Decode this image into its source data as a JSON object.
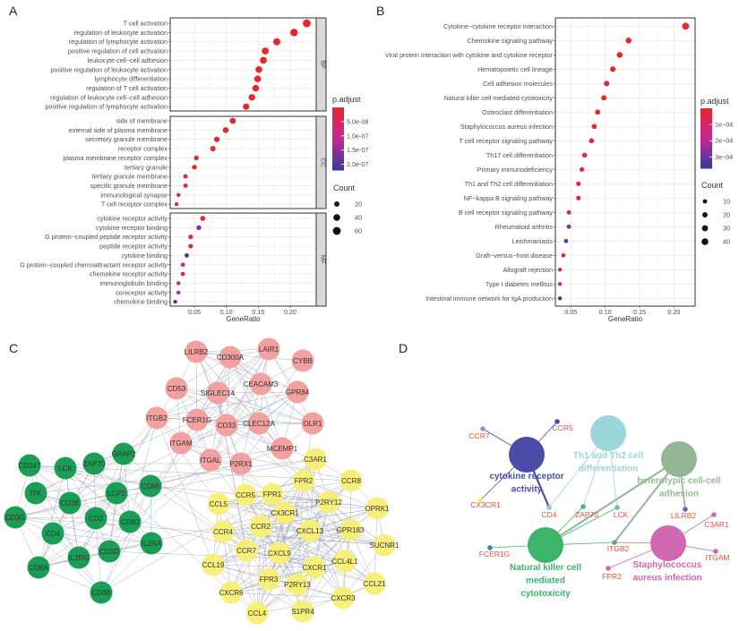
{
  "panels": {
    "a": "A",
    "b": "B",
    "c": "C",
    "d": "D"
  },
  "chart_data": [
    {
      "panel": "A",
      "type": "scatter",
      "xlabel": "GeneRatio",
      "xlim": [
        0.01,
        0.24
      ],
      "xticks": [
        "0.05",
        "0.10",
        "0.15",
        "0.20"
      ],
      "grid": true,
      "legend_position": "right",
      "color_legend": {
        "title": "p.adjust",
        "ticks": [
          "5.0e-08",
          "1.0e-07",
          "1.5e-07",
          "2.0e-07"
        ],
        "range": [
          0,
          2.2e-07
        ],
        "low_color": "#e8262f",
        "high_color": "#3a3a9a"
      },
      "size_legend": {
        "title": "Count",
        "values": [
          20,
          40,
          60
        ]
      },
      "facets": [
        {
          "name": "BP",
          "terms": [
            {
              "term": "T cell activation",
              "ratio": 0.226,
              "count": 61,
              "p": 1e-09
            },
            {
              "term": "regulation of leukocyte activation",
              "ratio": 0.206,
              "count": 56,
              "p": 1e-09
            },
            {
              "term": "regulation of lymphocyte activation",
              "ratio": 0.179,
              "count": 48,
              "p": 1e-09
            },
            {
              "term": "positive regulation of cell activation",
              "ratio": 0.161,
              "count": 44,
              "p": 1e-09
            },
            {
              "term": "leukocyte cell−cell adhesion",
              "ratio": 0.158,
              "count": 43,
              "p": 1e-09
            },
            {
              "term": "positive regulation of leukocyte activation",
              "ratio": 0.151,
              "count": 41,
              "p": 1e-09
            },
            {
              "term": "lymphocyte differentiation",
              "ratio": 0.149,
              "count": 40,
              "p": 1e-09
            },
            {
              "term": "regulation of T cell activation",
              "ratio": 0.146,
              "count": 39,
              "p": 1e-09
            },
            {
              "term": "regulation of leukocyte cell−cell adhesion",
              "ratio": 0.14,
              "count": 38,
              "p": 1e-09
            },
            {
              "term": "positive regulation of lymphocyte activation",
              "ratio": 0.131,
              "count": 35,
              "p": 1e-09
            }
          ]
        },
        {
          "name": "CC",
          "terms": [
            {
              "term": "side of membrane",
              "ratio": 0.11,
              "count": 30,
              "p": 1e-09
            },
            {
              "term": "external side of plasma membrane",
              "ratio": 0.099,
              "count": 27,
              "p": 1e-09
            },
            {
              "term": "secretory granule membrane",
              "ratio": 0.085,
              "count": 23,
              "p": 1e-09
            },
            {
              "term": "receptor complex",
              "ratio": 0.079,
              "count": 21,
              "p": 1e-09
            },
            {
              "term": "plasma membrane receptor complex",
              "ratio": 0.053,
              "count": 14,
              "p": 2e-09
            },
            {
              "term": "tertiary granule",
              "ratio": 0.05,
              "count": 14,
              "p": 2e-09
            },
            {
              "term": "tertiary granule membrane",
              "ratio": 0.036,
              "count": 10,
              "p": 3e-09
            },
            {
              "term": "specific granule membrane",
              "ratio": 0.036,
              "count": 10,
              "p": 3e-09
            },
            {
              "term": "immunological synapse",
              "ratio": 0.025,
              "count": 7,
              "p": 5e-09
            },
            {
              "term": "T cell receptor complex",
              "ratio": 0.022,
              "count": 6,
              "p": 1e-08
            }
          ]
        },
        {
          "name": "MF",
          "terms": [
            {
              "term": "cytokine receptor activity",
              "ratio": 0.063,
              "count": 17,
              "p": 1e-08
            },
            {
              "term": "cytokine receptor binding",
              "ratio": 0.057,
              "count": 15,
              "p": 1.5e-07
            },
            {
              "term": "G protein−coupled peptide receptor activity",
              "ratio": 0.044,
              "count": 12,
              "p": 2e-08
            },
            {
              "term": "peptide receptor activity",
              "ratio": 0.044,
              "count": 12,
              "p": 2e-08
            },
            {
              "term": "cytokine binding",
              "ratio": 0.038,
              "count": 10,
              "p": 2.1e-07
            },
            {
              "term": "G protein−coupled chemoattractant receptor activity",
              "ratio": 0.032,
              "count": 9,
              "p": 2e-08
            },
            {
              "term": "chemokine receptor activity",
              "ratio": 0.032,
              "count": 9,
              "p": 2e-08
            },
            {
              "term": "immunoglobulin binding",
              "ratio": 0.025,
              "count": 7,
              "p": 3e-08
            },
            {
              "term": "coreceptor activity",
              "ratio": 0.025,
              "count": 7,
              "p": 1.3e-07
            },
            {
              "term": "chemokine binding",
              "ratio": 0.02,
              "count": 6,
              "p": 2.1e-07
            }
          ]
        }
      ]
    },
    {
      "panel": "B",
      "type": "scatter",
      "xlabel": "GeneRatio",
      "xlim": [
        0.03,
        0.23
      ],
      "xticks": [
        "0.05",
        "0.10",
        "0.15",
        "0.20"
      ],
      "grid": true,
      "legend_position": "right",
      "color_legend": {
        "title": "p.adjust",
        "ticks": [
          "1e−04",
          "2e−04",
          "3e−04"
        ],
        "range": [
          0,
          0.00037
        ],
        "low_color": "#e8262f",
        "high_color": "#3a3a9a"
      },
      "size_legend": {
        "title": "Count",
        "values": [
          10,
          20,
          30,
          40
        ]
      },
      "terms": [
        {
          "term": "Cytokine−cytokine receptor interaction",
          "ratio": 0.217,
          "count": 44,
          "p": 1e-10
        },
        {
          "term": "Chemokine signaling pathway",
          "ratio": 0.134,
          "count": 27,
          "p": 1e-08
        },
        {
          "term": "Viral protein interaction with cytokine and cytokine receptor",
          "ratio": 0.121,
          "count": 25,
          "p": 1e-08
        },
        {
          "term": "Hematopoietic cell lineage",
          "ratio": 0.111,
          "count": 23,
          "p": 1e-08
        },
        {
          "term": "Cell adhesion molecules",
          "ratio": 0.102,
          "count": 21,
          "p": 1e-07
        },
        {
          "term": "Natural killer cell mediated cytotoxicity",
          "ratio": 0.098,
          "count": 20,
          "p": 1e-07
        },
        {
          "term": "Osteoclast differentiation",
          "ratio": 0.089,
          "count": 18,
          "p": 1e-06
        },
        {
          "term": "Staphylococcus aureus infection",
          "ratio": 0.084,
          "count": 17,
          "p": 1e-06
        },
        {
          "term": "T cell receptor signaling pathway",
          "ratio": 0.08,
          "count": 16,
          "p": 1e-06
        },
        {
          "term": "Th17 cell differentiation",
          "ratio": 0.07,
          "count": 14,
          "p": 5e-06
        },
        {
          "term": "Primary immunodeficiency",
          "ratio": 0.066,
          "count": 13,
          "p": 1e-07
        },
        {
          "term": "Th1 and Th2 cell differentiation",
          "ratio": 0.061,
          "count": 12,
          "p": 1e-05
        },
        {
          "term": "NF−kappa B signaling pathway",
          "ratio": 0.061,
          "count": 12,
          "p": 1e-05
        },
        {
          "term": "B cell receptor signaling pathway",
          "ratio": 0.047,
          "count": 10,
          "p": 8e-05
        },
        {
          "term": "Rheumatoid arthritis",
          "ratio": 0.047,
          "count": 10,
          "p": 0.00028
        },
        {
          "term": "Leishmaniasis",
          "ratio": 0.043,
          "count": 9,
          "p": 0.00033
        },
        {
          "term": "Graft−versus−host disease",
          "ratio": 0.039,
          "count": 8,
          "p": 3e-05
        },
        {
          "term": "Allograft rejection",
          "ratio": 0.034,
          "count": 7,
          "p": 6e-05
        },
        {
          "term": "Type I diabetes mellitus",
          "ratio": 0.034,
          "count": 7,
          "p": 0.00015
        },
        {
          "term": "Intestinal immune network for IgA production",
          "ratio": 0.034,
          "count": 7,
          "p": 0.00035
        }
      ]
    }
  ],
  "network_c": {
    "colors": {
      "pink": "#f2a0a0",
      "green": "#1a9e55",
      "yellow": "#f7ef7a",
      "edge": "#9aa0b4"
    },
    "clusters": {
      "pink": [
        "LILRB2",
        "CD300A",
        "LAIR1",
        "CYBB",
        "CD53",
        "SIGLEC14",
        "CEACAM3",
        "GPR84",
        "ITGB2",
        "FCER1G",
        "CD33",
        "CLEC12A",
        "OLR1",
        "ITGAM",
        "MCEMP1",
        "ITGAL",
        "P2RX1"
      ],
      "green": [
        "GRAP2",
        "CD247",
        "LCK",
        "ZAP70",
        "ITK",
        "CD3E",
        "LCP2",
        "CD86",
        "CD3G",
        "CD2",
        "CD80",
        "CD4",
        "IL2RA",
        "CD3D",
        "IL2RG",
        "CD8A",
        "CD8B"
      ],
      "yellow": [
        "C3AR1",
        "FPR2",
        "CCR8",
        "CCR5",
        "FPR1",
        "P2RY12",
        "OPRK1",
        "CCL5",
        "CX3CR1",
        "CCR2",
        "CXCL13",
        "GPR183",
        "CCR4",
        "SUCNR1",
        "CCR7",
        "CXCL9",
        "CCL19",
        "CCL4L1",
        "CXCR1",
        "FPR3",
        "P2RY13",
        "CCL21",
        "CXCR6",
        "CXCR3",
        "CCL4",
        "S1PR4"
      ]
    }
  },
  "network_d": {
    "terms": [
      {
        "id": "cyto",
        "label": [
          "cytokine receptor",
          "activity"
        ],
        "color": "#4a4ca8"
      },
      {
        "id": "th",
        "label": [
          "Th1 and Th2 cell",
          "differentiation"
        ],
        "color": "#9bd6da"
      },
      {
        "id": "het",
        "label": [
          "heterotypic cell-cell",
          "adhesion"
        ],
        "color": "#93b893"
      },
      {
        "id": "nk",
        "label": [
          "Natural killer cell",
          "mediated",
          "cytotoxicity"
        ],
        "color": "#3cb56b"
      },
      {
        "id": "sa",
        "label": [
          "Staphylococcus",
          "aureus infection"
        ],
        "color": "#d068b2"
      }
    ],
    "gene_label_color": "#e0533a",
    "genes": [
      {
        "id": "CCR7",
        "color": "#7fa0c0"
      },
      {
        "id": "CCR5",
        "color": "#4a4ca8"
      },
      {
        "id": "CX3CR1",
        "color": "#f4ea70"
      },
      {
        "id": "CD4",
        "color": "#8fc6e0"
      },
      {
        "id": "ZAP70",
        "color": "#4cb88a"
      },
      {
        "id": "LCK",
        "color": "#6cc09a"
      },
      {
        "id": "LILRB2",
        "color": "#6a6aa8"
      },
      {
        "id": "C3AR1",
        "color": "#d068b2"
      },
      {
        "id": "FCER1G",
        "color": "#4a7fa0"
      },
      {
        "id": "ITGB2",
        "color": "#6aa07a"
      },
      {
        "id": "ITGAM",
        "color": "#c070a8"
      },
      {
        "id": "FPR2",
        "color": "#d068b2"
      }
    ],
    "edges": [
      [
        "cyto",
        "CCR7"
      ],
      [
        "cyto",
        "CCR5"
      ],
      [
        "cyto",
        "CX3CR1"
      ],
      [
        "cyto",
        "CD4"
      ],
      [
        "th",
        "CD4"
      ],
      [
        "th",
        "ZAP70"
      ],
      [
        "th",
        "LCK"
      ],
      [
        "het",
        "nk"
      ],
      [
        "het",
        "ITGB2"
      ],
      [
        "het",
        "LILRB2"
      ],
      [
        "nk",
        "FCER1G"
      ],
      [
        "nk",
        "ZAP70"
      ],
      [
        "nk",
        "LCK"
      ],
      [
        "nk",
        "ITGB2"
      ],
      [
        "sa",
        "ITGB2"
      ],
      [
        "sa",
        "C3AR1"
      ],
      [
        "sa",
        "ITGAM"
      ],
      [
        "sa",
        "FPR2"
      ]
    ]
  }
}
